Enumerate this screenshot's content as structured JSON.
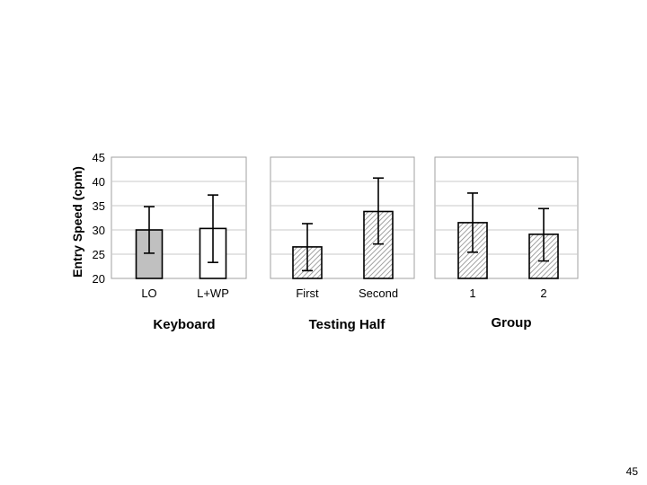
{
  "slide": {
    "page_number": "45"
  },
  "chart_data": [
    {
      "type": "bar",
      "ylabel": "Entry Speed (cpm)",
      "xlabel": "Keyboard",
      "ylim": [
        20,
        45
      ],
      "yticks": [
        "20",
        "25",
        "30",
        "35",
        "40",
        "45"
      ],
      "grid": true,
      "categories": [
        "LO",
        "L+WP"
      ],
      "values": [
        30,
        30.3
      ],
      "errors": [
        [
          25.2,
          34.8
        ],
        [
          23.3,
          37.2
        ]
      ],
      "fills": [
        "gray",
        "white"
      ]
    },
    {
      "type": "bar",
      "xlabel": "Testing Half",
      "ylim": [
        20,
        45
      ],
      "grid": true,
      "categories": [
        "First",
        "Second"
      ],
      "values": [
        26.5,
        33.8
      ],
      "errors": [
        [
          21.6,
          31.3
        ],
        [
          27.1,
          40.7
        ]
      ],
      "fills": [
        "hatch",
        "hatch"
      ]
    },
    {
      "type": "bar",
      "xlabel": "Group",
      "ylim": [
        20,
        45
      ],
      "grid": true,
      "categories": [
        "1",
        "2"
      ],
      "values": [
        31.5,
        29.1
      ],
      "errors": [
        [
          25.4,
          37.6
        ],
        [
          23.6,
          34.4
        ]
      ],
      "fills": [
        "hatch",
        "hatch"
      ]
    }
  ]
}
